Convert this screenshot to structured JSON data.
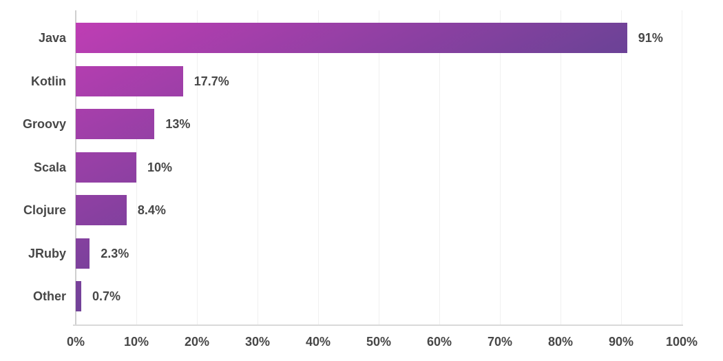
{
  "chart_data": {
    "type": "bar",
    "orientation": "horizontal",
    "title": "",
    "xlabel": "",
    "ylabel": "",
    "categories": [
      "Java",
      "Kotlin",
      "Groovy",
      "Scala",
      "Clojure",
      "JRuby",
      "Other"
    ],
    "values": [
      91,
      17.7,
      13,
      10,
      8.4,
      2.3,
      0.7
    ],
    "value_labels": [
      "91%",
      "17.7%",
      "13%",
      "10%",
      "8.4%",
      "2.3%",
      "0.7%"
    ],
    "xlim": [
      0,
      100
    ],
    "x_ticks": [
      "0%",
      "10%",
      "20%",
      "30%",
      "40%",
      "50%",
      "60%",
      "70%",
      "80%",
      "90%",
      "100%"
    ],
    "grid": "vertical-only",
    "legend": "none",
    "colors": {
      "bar_gradient_start": "#c23db5",
      "bar_gradient_mid": "#6e4297",
      "bar_gradient_end": "#443093",
      "gridline": "#f0f0f0",
      "zero_axis_line": "#cfcfcf",
      "bottom_axis_line": "#d9d9d9",
      "label_text": "#474747",
      "background": "#ffffff"
    }
  }
}
